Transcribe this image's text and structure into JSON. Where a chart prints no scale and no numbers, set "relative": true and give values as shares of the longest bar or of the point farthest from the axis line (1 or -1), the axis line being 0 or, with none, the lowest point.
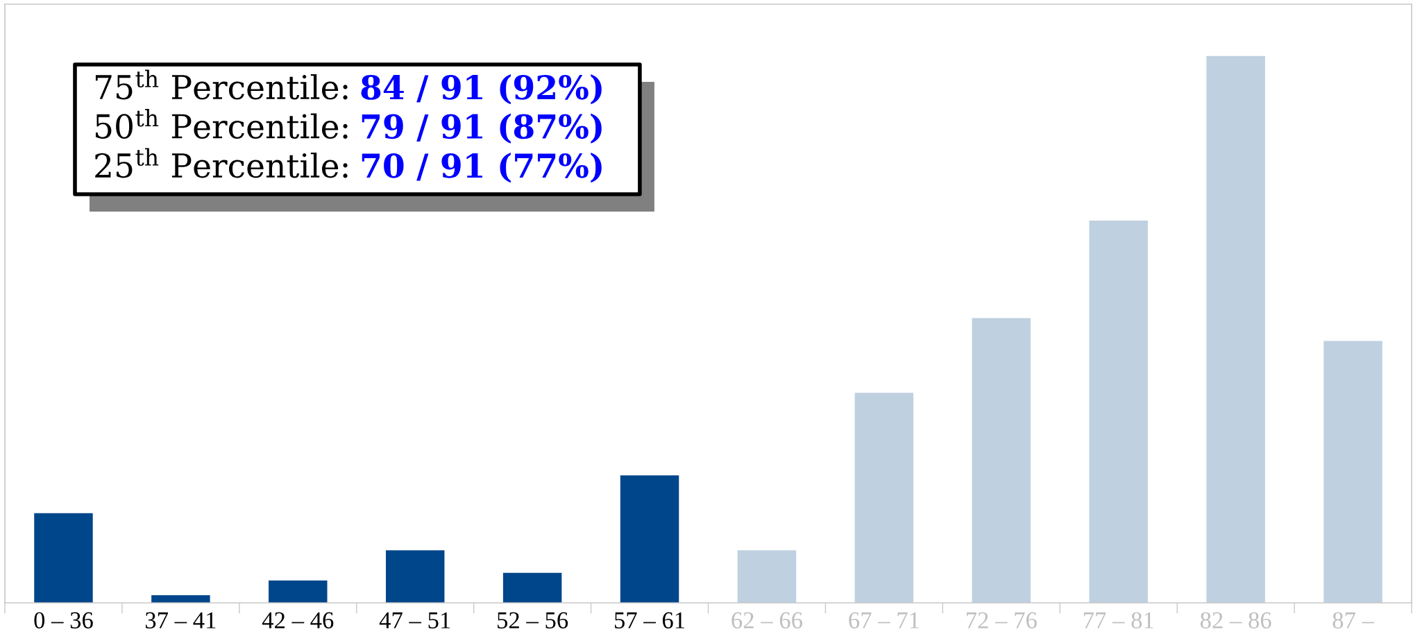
{
  "chart_data": {
    "type": "bar",
    "relative": true,
    "categories": [
      "0 – 36",
      "37 – 41",
      "42 – 46",
      "47 – 51",
      "52 – 56",
      "57 – 61",
      "62 – 66",
      "67 – 71",
      "72 – 76",
      "77 – 81",
      "82 – 86",
      "87 –"
    ],
    "values": [
      0.164,
      0.014,
      0.041,
      0.096,
      0.055,
      0.233,
      0.096,
      0.384,
      0.521,
      0.699,
      1,
      0.479
    ],
    "colors": [
      "#00468b",
      "#00468b",
      "#00468b",
      "#00468b",
      "#00468b",
      "#00468b",
      "#bfd0e0",
      "#bfd0e0",
      "#bfd0e0",
      "#bfd0e0",
      "#bfd0e0",
      "#bfd0e0"
    ],
    "annotations": [
      "75$^{th}$ Percentile: 84 / 91 (92%)",
      "50$^{th}$ Percentile: 79 / 91 (87%)",
      "25$^{th}$ Percentile: 70 / 91 (77%)"
    ]
  }
}
